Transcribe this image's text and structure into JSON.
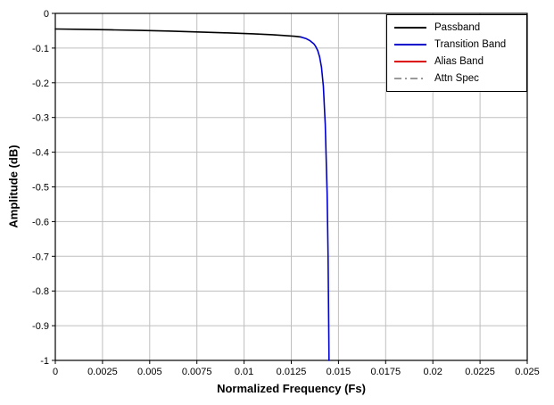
{
  "figure": {
    "background": "#ffffff",
    "border_color": "#000000"
  },
  "chart_data": {
    "type": "line",
    "title": "",
    "xlabel": "Normalized Frequency (Fs)",
    "ylabel": "Amplitude (dB)",
    "xlim": [
      0,
      0.025
    ],
    "ylim": [
      -1,
      0
    ],
    "grid": true,
    "grid_color": "#bfbfbf",
    "legend_position": "top-right",
    "x_ticks": [
      0,
      0.0025,
      0.005,
      0.0075,
      0.01,
      0.0125,
      0.015,
      0.0175,
      0.02,
      0.0225,
      0.025
    ],
    "x_tick_labels": [
      "0",
      "0.0025",
      "0.005",
      "0.0075",
      "0.01",
      "0.0125",
      "0.015",
      "0.0175",
      "0.02",
      "0.0225",
      "0.025"
    ],
    "y_ticks": [
      0,
      -0.1,
      -0.2,
      -0.3,
      -0.4,
      -0.5,
      -0.6,
      -0.7,
      -0.8,
      -0.9,
      -1
    ],
    "y_tick_labels": [
      "0",
      "-0.1",
      "-0.2",
      "-0.3",
      "-0.4",
      "-0.5",
      "-0.6",
      "-0.7",
      "-0.8",
      "-0.9",
      "-1"
    ],
    "series": [
      {
        "name": "Passband",
        "color": "#000000",
        "style": "solid",
        "points": [
          [
            0,
            -0.045
          ],
          [
            0.0015,
            -0.046
          ],
          [
            0.003,
            -0.0475
          ],
          [
            0.0045,
            -0.049
          ],
          [
            0.006,
            -0.051
          ],
          [
            0.0075,
            -0.0535
          ],
          [
            0.009,
            -0.056
          ],
          [
            0.0105,
            -0.059
          ],
          [
            0.0115,
            -0.0615
          ],
          [
            0.0122,
            -0.064
          ],
          [
            0.0127,
            -0.066
          ],
          [
            0.013,
            -0.068
          ]
        ]
      },
      {
        "name": "Transition Band",
        "color": "#0000cc",
        "style": "solid",
        "points": [
          [
            0.013,
            -0.068
          ],
          [
            0.0133,
            -0.073
          ],
          [
            0.0135,
            -0.079
          ],
          [
            0.0137,
            -0.088
          ],
          [
            0.0138,
            -0.096
          ],
          [
            0.0139,
            -0.107
          ],
          [
            0.014,
            -0.125
          ],
          [
            0.0141,
            -0.155
          ],
          [
            0.0142,
            -0.21
          ],
          [
            0.0143,
            -0.32
          ],
          [
            0.0144,
            -0.52
          ],
          [
            0.01445,
            -0.7
          ],
          [
            0.0145,
            -1.0
          ]
        ]
      },
      {
        "name": "Alias Band",
        "color": "#dd0000",
        "style": "solid",
        "points": []
      },
      {
        "name": "Attn Spec",
        "color": "#9a9a9a",
        "style": "dash-dot",
        "points": []
      }
    ]
  }
}
